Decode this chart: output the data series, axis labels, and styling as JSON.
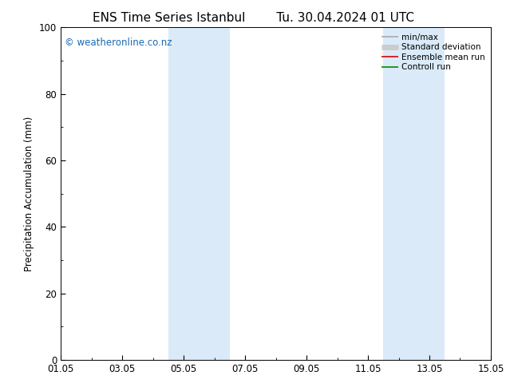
{
  "title": "ENS Time Series Istanbul",
  "title2": "Tu. 30.04.2024 01 UTC",
  "ylabel": "Precipitation Accumulation (mm)",
  "ylim": [
    0,
    100
  ],
  "yticks": [
    0,
    20,
    40,
    60,
    80,
    100
  ],
  "xtick_labels": [
    "01.05",
    "03.05",
    "05.05",
    "07.05",
    "09.05",
    "11.05",
    "13.05",
    "15.05"
  ],
  "xtick_positions": [
    0,
    2,
    4,
    6,
    8,
    10,
    12,
    14
  ],
  "x_total_days": 14,
  "shaded_bands": [
    {
      "xmin": 3.5,
      "xmax": 5.5
    },
    {
      "xmin": 10.5,
      "xmax": 12.5
    }
  ],
  "band_color": "#daeaf8",
  "watermark": "© weatheronline.co.nz",
  "watermark_color": "#1a6ab5",
  "legend_items": [
    {
      "label": "min/max",
      "color": "#aaaaaa",
      "lw": 1.2
    },
    {
      "label": "Standard deviation",
      "color": "#cccccc",
      "lw": 5.0
    },
    {
      "label": "Ensemble mean run",
      "color": "#dd0000",
      "lw": 1.2
    },
    {
      "label": "Controll run",
      "color": "#008800",
      "lw": 1.2
    }
  ],
  "bg_color": "#ffffff",
  "title_fontsize": 11,
  "tick_label_fontsize": 8.5,
  "ylabel_fontsize": 8.5,
  "watermark_fontsize": 8.5,
  "legend_fontsize": 7.5
}
